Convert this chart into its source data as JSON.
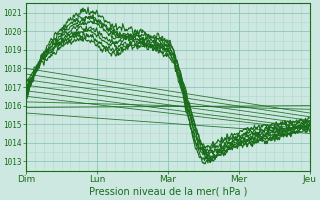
{
  "xlabel": "Pression niveau de la mer( hPa )",
  "bg_color": "#cce8e0",
  "grid_color_major": "#90c8bc",
  "grid_color_minor": "#b0d8d0",
  "line_color": "#1a6b1a",
  "ylim": [
    1012.5,
    1021.5
  ],
  "yticks": [
    1013,
    1014,
    1015,
    1016,
    1017,
    1018,
    1019,
    1020,
    1021
  ],
  "xtick_labels": [
    "Dim",
    "Lun",
    "Mar",
    "Mer",
    "Jeu"
  ],
  "days": 4,
  "forecast_starts": [
    1018.0,
    1017.7,
    1017.4,
    1017.1,
    1016.8,
    1016.5,
    1016.2,
    1015.9,
    1015.6
  ],
  "forecast_ends": [
    1015.6,
    1015.4,
    1015.2,
    1015.0,
    1014.8,
    1014.7,
    1015.8,
    1016.0,
    1014.5
  ]
}
